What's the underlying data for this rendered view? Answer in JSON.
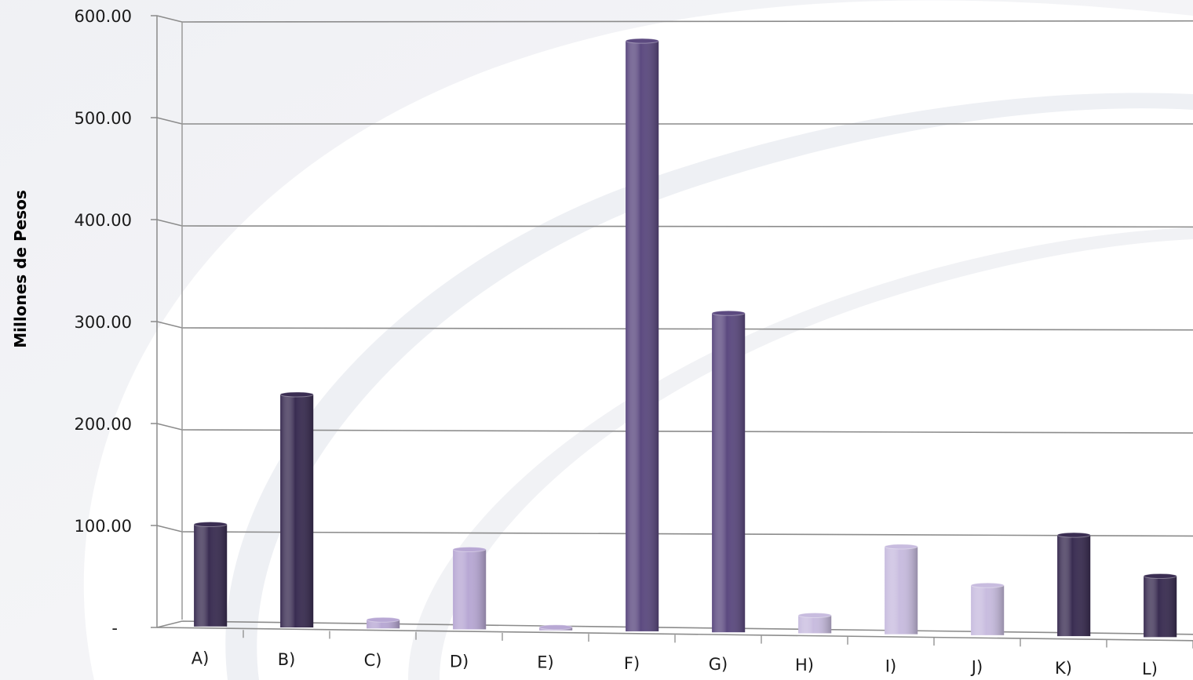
{
  "chart_data": {
    "type": "bar",
    "ylabel": "Millones de Pesos",
    "ylim": [
      0,
      600
    ],
    "yticks": [
      "-",
      "100.00",
      "200.00",
      "300.00",
      "400.00",
      "500.00",
      "600.00"
    ],
    "ytick_values": [
      0,
      100,
      200,
      300,
      400,
      500,
      600
    ],
    "grid": true,
    "categories": [
      "A)",
      "B)",
      "C)",
      "D)",
      "E)",
      "F)",
      "G)",
      "H)",
      "I)",
      "J)",
      "K)",
      "L)"
    ],
    "values": [
      114,
      242,
      10,
      92,
      2,
      590,
      325,
      19,
      99,
      50,
      112,
      73
    ],
    "bar_colors": [
      "#3a2d52",
      "#3a2d52",
      "#b8a8d4",
      "#b8a8d4",
      "#b8a8d4",
      "#5c4a80",
      "#5c4a80",
      "#c8bcdf",
      "#c8bcdf",
      "#c8bcdf",
      "#3a2d52",
      "#3a2d52"
    ]
  }
}
